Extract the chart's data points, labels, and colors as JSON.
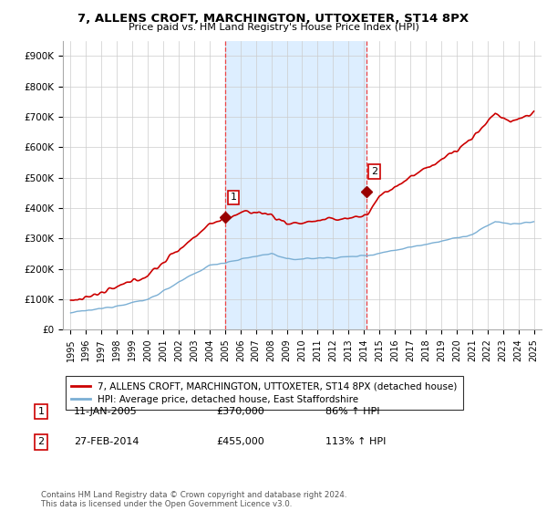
{
  "title": "7, ALLENS CROFT, MARCHINGTON, UTTOXETER, ST14 8PX",
  "subtitle": "Price paid vs. HM Land Registry's House Price Index (HPI)",
  "legend_line1": "7, ALLENS CROFT, MARCHINGTON, UTTOXETER, ST14 8PX (detached house)",
  "legend_line2": "HPI: Average price, detached house, East Staffordshire",
  "footnote": "Contains HM Land Registry data © Crown copyright and database right 2024.\nThis data is licensed under the Open Government Licence v3.0.",
  "sale1_label": "1",
  "sale1_date": "11-JAN-2005",
  "sale1_price": "£370,000",
  "sale1_hpi": "86% ↑ HPI",
  "sale1_x": 2005.04,
  "sale1_y": 370000,
  "sale2_label": "2",
  "sale2_date": "27-FEB-2014",
  "sale2_price": "£455,000",
  "sale2_hpi": "113% ↑ HPI",
  "sale2_x": 2014.16,
  "sale2_y": 455000,
  "hpi_color": "#7BAFD4",
  "price_color": "#cc0000",
  "sale_marker_color": "#990000",
  "vline_color": "#ee4444",
  "highlight_color": "#ddeeff",
  "ylim": [
    0,
    950000
  ],
  "xlim_start": 1994.5,
  "xlim_end": 2025.5,
  "yticks": [
    0,
    100000,
    200000,
    300000,
    400000,
    500000,
    600000,
    700000,
    800000,
    900000
  ],
  "ytick_labels": [
    "£0",
    "£100K",
    "£200K",
    "£300K",
    "£400K",
    "£500K",
    "£600K",
    "£700K",
    "£800K",
    "£900K"
  ],
  "xticks": [
    1995,
    1996,
    1997,
    1998,
    1999,
    2000,
    2001,
    2002,
    2003,
    2004,
    2005,
    2006,
    2007,
    2008,
    2009,
    2010,
    2011,
    2012,
    2013,
    2014,
    2015,
    2016,
    2017,
    2018,
    2019,
    2020,
    2021,
    2022,
    2023,
    2024,
    2025
  ]
}
